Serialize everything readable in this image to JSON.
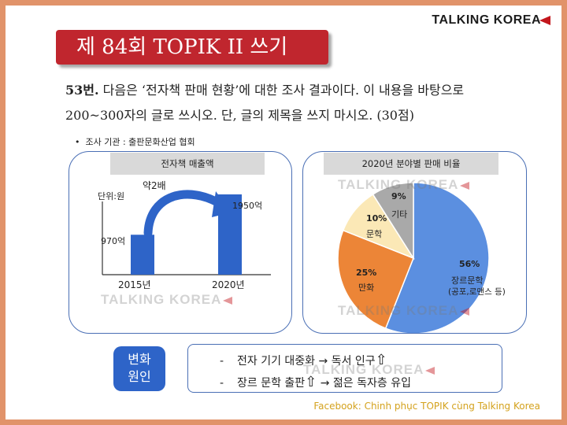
{
  "brand": {
    "name": "TALKING KOREA"
  },
  "title": "제 84회 TOPIK II 쓰기",
  "question": {
    "number": "53번.",
    "line1": "다음은 ‘전자책 판매 현황’에 대한 조사 결과이다. 이 내용을 바탕으로",
    "line2": "200~300자의 글로 쓰시오. 단, 글의 제목을 쓰지 마시오. (30점)"
  },
  "source": {
    "bullet": "•",
    "text": "조사 기관 : 출판문화산업 협회"
  },
  "watermark": "TALKING KOREA",
  "chart_data": [
    {
      "type": "bar",
      "title": "전자책 매출액",
      "unit_label": "단위:원",
      "categories": [
        "2015년",
        "2020년"
      ],
      "values": [
        970,
        1950
      ],
      "value_labels": [
        "970억",
        "1950억"
      ],
      "annotation": "약2배",
      "ylim": [
        0,
        2600
      ],
      "colors": {
        "bar": "#2e64c8",
        "arrow": "#2e64c8"
      }
    },
    {
      "type": "pie",
      "title": "2020년 분야별 판매 비율",
      "slices": [
        {
          "label": "장르문학",
          "sublabel": "(공포,로맨스 등)",
          "value": 56,
          "pct_label": "56%",
          "color": "#5b8fe0"
        },
        {
          "label": "만화",
          "sublabel": "",
          "value": 25,
          "pct_label": "25%",
          "color": "#ec8537"
        },
        {
          "label": "문학",
          "sublabel": "",
          "value": 10,
          "pct_label": "10%",
          "color": "#fbe8b6"
        },
        {
          "label": "기타",
          "sublabel": "",
          "value": 9,
          "pct_label": "9%",
          "color": "#a9a9a9"
        }
      ]
    }
  ],
  "causes": {
    "box_label_1": "변화",
    "box_label_2": "원인",
    "items": [
      {
        "dash": "-",
        "text": "전자 기기 대중화 → 독서 인구",
        "arrow": "⇧"
      },
      {
        "dash": "-",
        "text": "장르 문학 출판",
        "arrow": "⇧",
        "text2": "→ 젊은 독자층 유입"
      }
    ]
  },
  "footer": {
    "facebook": "Facebook: Chinh phục TOPIK cùng Talking Korea"
  }
}
